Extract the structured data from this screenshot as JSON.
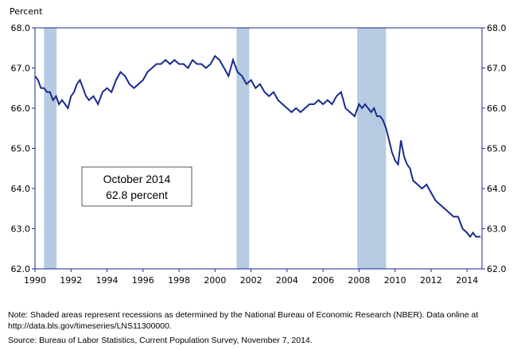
{
  "chart_data": {
    "type": "line",
    "unit_label": "Percent",
    "ylim": [
      62.0,
      68.0
    ],
    "y_ticks": [
      "68.0",
      "67.0",
      "66.0",
      "65.0",
      "64.0",
      "63.0",
      "62.0"
    ],
    "y_tick_values": [
      68,
      67,
      66,
      65,
      64,
      63,
      62
    ],
    "xlim": [
      1990,
      2014.83
    ],
    "x_ticks": [
      "1990",
      "1992",
      "1994",
      "1996",
      "1998",
      "2000",
      "2002",
      "2004",
      "2006",
      "2008",
      "2010",
      "2012",
      "2014"
    ],
    "x_tick_values": [
      1990,
      1992,
      1994,
      1996,
      1998,
      2000,
      2002,
      2004,
      2006,
      2008,
      2010,
      2012,
      2014
    ],
    "recessions": [
      [
        1990.5,
        1991.2
      ],
      [
        2001.2,
        2001.9
      ],
      [
        2007.9,
        2009.5
      ]
    ],
    "line_color": "#1b2a8c",
    "recession_color": "#b5cbe2",
    "axis_color": "#1b2a8c",
    "series": [
      {
        "x": [
          1990.0,
          1990.17,
          1990.33,
          1990.5,
          1990.67,
          1990.83,
          1991.0,
          1991.17,
          1991.33,
          1991.5,
          1991.67,
          1991.83,
          1992.0,
          1992.17,
          1992.33,
          1992.5,
          1992.67,
          1992.83,
          1993.0,
          1993.25,
          1993.5,
          1993.75,
          1994.0,
          1994.25,
          1994.5,
          1994.75,
          1995.0,
          1995.25,
          1995.5,
          1995.75,
          1996.0,
          1996.25,
          1996.5,
          1996.75,
          1997.0,
          1997.25,
          1997.5,
          1997.75,
          1998.0,
          1998.25,
          1998.5,
          1998.75,
          1999.0,
          1999.25,
          1999.5,
          1999.75,
          2000.0,
          2000.25,
          2000.5,
          2000.75,
          2001.0,
          2001.25,
          2001.5,
          2001.75,
          2002.0,
          2002.25,
          2002.5,
          2002.75,
          2003.0,
          2003.25,
          2003.5,
          2003.75,
          2004.0,
          2004.25,
          2004.5,
          2004.75,
          2005.0,
          2005.25,
          2005.5,
          2005.75,
          2006.0,
          2006.25,
          2006.5,
          2006.75,
          2007.0,
          2007.25,
          2007.5,
          2007.75,
          2008.0,
          2008.17,
          2008.33,
          2008.5,
          2008.67,
          2008.83,
          2009.0,
          2009.17,
          2009.33,
          2009.5,
          2009.67,
          2009.83,
          2010.0,
          2010.17,
          2010.33,
          2010.5,
          2010.67,
          2010.83,
          2011.0,
          2011.25,
          2011.5,
          2011.75,
          2012.0,
          2012.25,
          2012.5,
          2012.75,
          2013.0,
          2013.25,
          2013.5,
          2013.75,
          2014.0,
          2014.17,
          2014.33,
          2014.5,
          2014.67,
          2014.75
        ],
        "values": [
          66.8,
          66.7,
          66.5,
          66.5,
          66.4,
          66.4,
          66.2,
          66.3,
          66.1,
          66.2,
          66.1,
          66.0,
          66.3,
          66.4,
          66.6,
          66.7,
          66.5,
          66.3,
          66.2,
          66.3,
          66.1,
          66.4,
          66.5,
          66.4,
          66.7,
          66.9,
          66.8,
          66.6,
          66.5,
          66.6,
          66.7,
          66.9,
          67.0,
          67.1,
          67.1,
          67.2,
          67.1,
          67.2,
          67.1,
          67.1,
          67.0,
          67.2,
          67.1,
          67.1,
          67.0,
          67.1,
          67.3,
          67.2,
          67.0,
          66.8,
          67.2,
          66.9,
          66.8,
          66.6,
          66.7,
          66.5,
          66.6,
          66.4,
          66.3,
          66.4,
          66.2,
          66.1,
          66.0,
          65.9,
          66.0,
          65.9,
          66.0,
          66.1,
          66.1,
          66.2,
          66.1,
          66.2,
          66.1,
          66.3,
          66.4,
          66.0,
          65.9,
          65.8,
          66.1,
          66.0,
          66.1,
          66.0,
          65.9,
          66.0,
          65.8,
          65.8,
          65.7,
          65.5,
          65.2,
          64.9,
          64.7,
          64.6,
          65.2,
          64.8,
          64.6,
          64.5,
          64.2,
          64.1,
          64.0,
          64.1,
          63.9,
          63.7,
          63.6,
          63.5,
          63.4,
          63.3,
          63.3,
          63.0,
          62.9,
          62.8,
          62.9,
          62.8,
          62.8,
          62.8
        ]
      }
    ],
    "callout": {
      "line1": "October 2014",
      "line2": "62.8 percent"
    }
  },
  "footnotes": {
    "note": "Note:  Shaded areas represent recessions as determined by the National Bureau of Economic Research (NBER).  Data online at http://data.bls.gov/timeseries/LNS11300000.",
    "source": "Source:  Bureau of Labor Statistics, Current Population Survey, November 7, 2014."
  }
}
